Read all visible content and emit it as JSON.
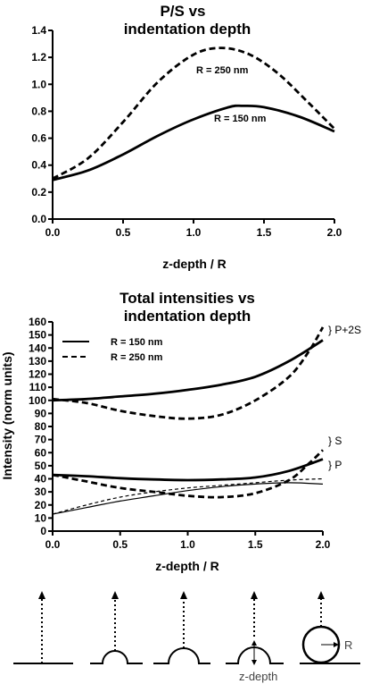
{
  "chart_data": [
    {
      "type": "line",
      "title_lines": [
        "P/S vs",
        "indentation depth"
      ],
      "xlabel": "z-depth / R",
      "ylabel": "",
      "xlim": [
        0,
        2
      ],
      "ylim": [
        0,
        1.4
      ],
      "x_ticks": [
        "0.0",
        "0.5",
        "1.0",
        "1.5",
        "2.0"
      ],
      "y_ticks": [
        "0.0",
        "0.2",
        "0.4",
        "0.6",
        "0.8",
        "1.0",
        "1.2",
        "1.4"
      ],
      "grid": false,
      "series": [
        {
          "name": "R = 150 nm",
          "style": "solid",
          "x": [
            0,
            0.25,
            0.5,
            0.75,
            1.0,
            1.25,
            1.35,
            1.5,
            1.75,
            2.0
          ],
          "y": [
            0.29,
            0.36,
            0.48,
            0.62,
            0.74,
            0.83,
            0.84,
            0.83,
            0.76,
            0.65
          ]
        },
        {
          "name": "R = 250 nm",
          "style": "dashed",
          "x": [
            0,
            0.25,
            0.5,
            0.75,
            1.0,
            1.2,
            1.4,
            1.6,
            1.8,
            2.0
          ],
          "y": [
            0.3,
            0.45,
            0.72,
            1.02,
            1.22,
            1.27,
            1.22,
            1.08,
            0.88,
            0.67
          ]
        }
      ],
      "annotations": [
        "R = 250 nm",
        "R = 150 nm"
      ]
    },
    {
      "type": "line",
      "title_lines": [
        "Total intensities vs",
        "indentation depth"
      ],
      "xlabel": "z-depth / R",
      "ylabel": "Intensity (norm units)",
      "xlim": [
        0,
        2
      ],
      "ylim": [
        0,
        160
      ],
      "x_ticks": [
        "0.0",
        "0.5",
        "1.0",
        "1.5",
        "2.0"
      ],
      "y_ticks": [
        "0",
        "10",
        "20",
        "30",
        "40",
        "50",
        "60",
        "70",
        "80",
        "90",
        "100",
        "110",
        "120",
        "130",
        "140",
        "150",
        "160"
      ],
      "grid": false,
      "legend": {
        "position": "top-left",
        "entries": [
          {
            "label": "R = 150 nm",
            "style": "solid"
          },
          {
            "label": "R = 250 nm",
            "style": "dashed"
          }
        ]
      },
      "series": [
        {
          "group": "P+2S",
          "radius": "R = 150 nm",
          "style": "solid",
          "weight": "thick",
          "x": [
            0,
            0.25,
            0.5,
            0.75,
            1.0,
            1.25,
            1.5,
            1.75,
            2.0
          ],
          "y": [
            100,
            101,
            103,
            105,
            108,
            112,
            118,
            130,
            146
          ]
        },
        {
          "group": "P+2S",
          "radius": "R = 250 nm",
          "style": "dashed",
          "weight": "thick",
          "x": [
            0,
            0.25,
            0.5,
            0.75,
            1.0,
            1.25,
            1.5,
            1.75,
            1.9,
            2.0
          ],
          "y": [
            101,
            98,
            92,
            88,
            86,
            89,
            100,
            118,
            138,
            156
          ]
        },
        {
          "group": "S",
          "radius": "R = 150 nm",
          "style": "solid",
          "weight": "thick",
          "x": [
            0,
            0.25,
            0.5,
            0.75,
            1.0,
            1.25,
            1.5,
            1.75,
            2.0
          ],
          "y": [
            43,
            42,
            40.5,
            39.5,
            39,
            39.5,
            41,
            46,
            55
          ]
        },
        {
          "group": "S",
          "radius": "R = 250 nm",
          "style": "dashed",
          "weight": "thick",
          "x": [
            0,
            0.25,
            0.5,
            0.75,
            1.0,
            1.25,
            1.5,
            1.75,
            1.9,
            2.0
          ],
          "y": [
            43,
            38,
            33,
            30,
            27,
            26,
            29,
            39,
            52,
            62
          ]
        },
        {
          "group": "P",
          "radius": "R = 150 nm",
          "style": "solid",
          "weight": "thin",
          "x": [
            0,
            0.25,
            0.5,
            0.75,
            1.0,
            1.25,
            1.5,
            1.75,
            2.0
          ],
          "y": [
            13,
            18,
            23,
            27,
            31,
            34,
            36,
            37,
            36
          ]
        },
        {
          "group": "P",
          "radius": "R = 250 nm",
          "style": "dashed",
          "weight": "thin",
          "x": [
            0,
            0.25,
            0.5,
            0.75,
            1.0,
            1.25,
            1.5,
            1.75,
            2.0
          ],
          "y": [
            13,
            20,
            26,
            30,
            33,
            35,
            37,
            39,
            40
          ]
        }
      ],
      "group_labels": [
        "} P+2S",
        "} S",
        "} P"
      ]
    }
  ],
  "diagram": {
    "labels": {
      "radius": "R",
      "depth": "z-depth"
    }
  }
}
